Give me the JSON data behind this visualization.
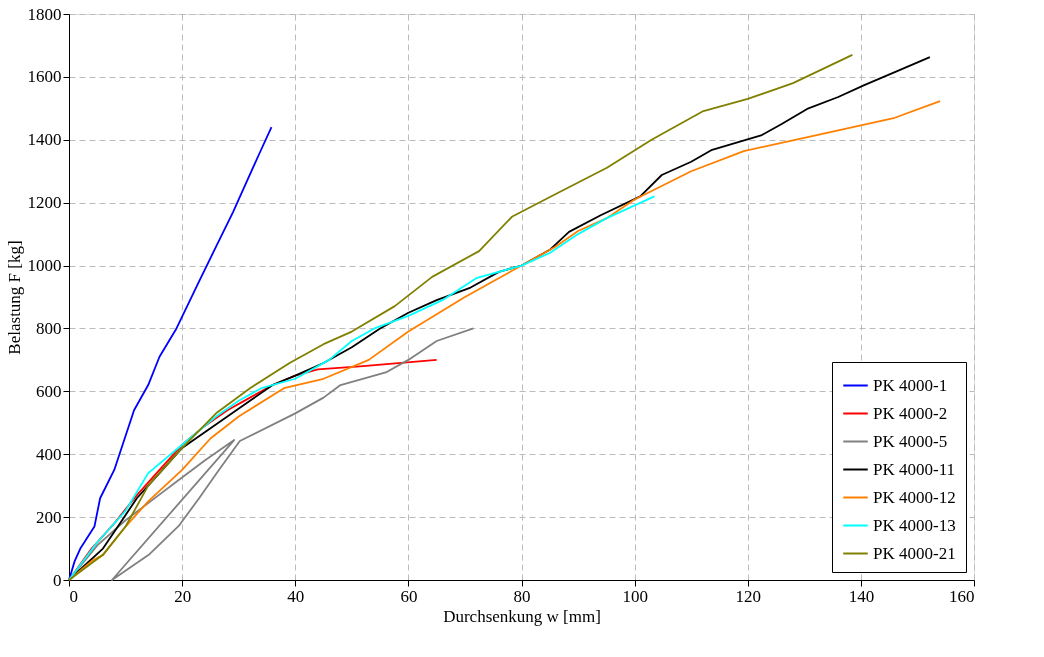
{
  "chart_data": {
    "type": "line",
    "xlabel": "Durchsenkung w [mm]",
    "ylabel": "Belastung F [kg]",
    "xlim": [
      0,
      160
    ],
    "ylim": [
      0,
      1800
    ],
    "xticks": [
      0,
      20,
      40,
      60,
      80,
      100,
      120,
      140,
      160
    ],
    "yticks": [
      0,
      200,
      400,
      600,
      800,
      1000,
      1200,
      1400,
      1600,
      1800
    ],
    "grid": true,
    "legend": "bottom right",
    "line_style": "solid",
    "series": [
      {
        "name": "PK 4000-1",
        "color": "#0000ff",
        "x": [
          0,
          1,
          2,
          4.5,
          5.5,
          8,
          11.5,
          14,
          16,
          19,
          23,
          26,
          29,
          31,
          33.5,
          35.8
        ],
        "values": [
          0,
          60,
          100,
          170,
          260,
          350,
          540,
          620,
          710,
          800,
          950,
          1060,
          1170,
          1250,
          1350,
          1440
        ]
      },
      {
        "name": "PK 4000-2",
        "color": "#ff0000",
        "x": [
          0,
          4,
          8,
          12,
          16,
          20,
          24,
          28,
          32,
          36,
          40,
          44,
          52,
          65
        ],
        "values": [
          0,
          100,
          180,
          270,
          350,
          430,
          490,
          540,
          580,
          620,
          650,
          670,
          680,
          700
        ]
      },
      {
        "name": "PK 4000-5",
        "color": "#808080",
        "x": [
          0,
          5,
          10,
          14.7,
          19.4,
          24,
          29.2,
          7.6,
          14.1,
          19.4,
          23,
          26.5,
          30.2,
          40,
          45,
          48,
          56,
          60,
          65,
          71.5
        ],
        "values": [
          0,
          110,
          190,
          254,
          318,
          380,
          445,
          0,
          80,
          172,
          260,
          350,
          442,
          530,
          580,
          620,
          660,
          700,
          760,
          800
        ]
      },
      {
        "name": "PK 4000-11",
        "color": "#000000",
        "x": [
          0,
          3,
          6,
          9,
          12,
          16,
          20,
          24,
          28,
          32,
          36,
          40,
          45,
          50,
          55,
          60,
          65,
          71,
          76,
          80,
          85,
          88.4,
          94,
          101,
          104.8,
          110,
          113.7,
          122.5,
          126,
          130.5,
          136,
          140.6,
          146,
          152.2
        ],
        "values": [
          0,
          50,
          100,
          180,
          260,
          340,
          420,
          470,
          520,
          570,
          620,
          650,
          690,
          740,
          800,
          850,
          890,
          930,
          980,
          1000,
          1050,
          1107,
          1160,
          1220,
          1288,
          1330,
          1368,
          1415,
          1450,
          1498,
          1536,
          1574,
          1615,
          1663
        ]
      },
      {
        "name": "PK 4000-12",
        "color": "#ff8000",
        "x": [
          0,
          4,
          6,
          10,
          14,
          20,
          25,
          30,
          38,
          45,
          53,
          60,
          70,
          80,
          86,
          90,
          95,
          100,
          110,
          119.3,
          131,
          146,
          154
        ],
        "values": [
          0,
          60,
          80,
          170,
          250,
          350,
          450,
          520,
          610,
          640,
          700,
          790,
          900,
          1000,
          1060,
          1110,
          1150,
          1210,
          1300,
          1364,
          1410,
          1470,
          1523
        ]
      },
      {
        "name": "PK 4000-13",
        "color": "#00ffff",
        "x": [
          0,
          5,
          10,
          14,
          20,
          26,
          30,
          34,
          40,
          46,
          50,
          54,
          60,
          66,
          72,
          80,
          85,
          90,
          95,
          103.5
        ],
        "values": [
          0,
          120,
          220,
          340,
          430,
          520,
          570,
          610,
          640,
          700,
          760,
          800,
          840,
          890,
          960,
          1000,
          1040,
          1100,
          1150,
          1220
        ]
      },
      {
        "name": "PK 4000-21",
        "color": "#808000",
        "x": [
          0,
          6,
          10,
          14,
          20,
          26,
          32,
          39,
          45,
          50,
          57.6,
          64.2,
          72.5,
          78.3,
          85.8,
          95.1,
          103,
          112,
          120,
          128,
          138.5
        ],
        "values": [
          0,
          80,
          170,
          300,
          420,
          530,
          610,
          690,
          750,
          790,
          871,
          964,
          1046,
          1155,
          1225,
          1311,
          1400,
          1490,
          1530,
          1580,
          1670
        ]
      }
    ]
  }
}
